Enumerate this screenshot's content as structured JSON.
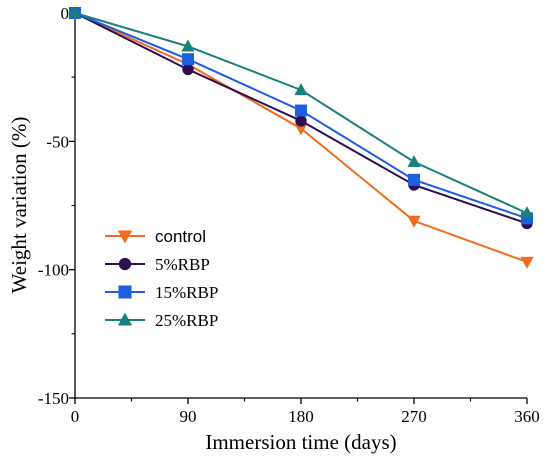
{
  "chart_data": {
    "type": "line",
    "title": "",
    "xlabel": "Immersion time (days)",
    "ylabel": "Weight variation (%)",
    "x": [
      0,
      90,
      180,
      270,
      360
    ],
    "xticks": [
      "0",
      "90",
      "180",
      "270",
      "360"
    ],
    "yticks": [
      "0",
      "-50",
      "-100",
      "-150"
    ],
    "xlim": [
      0,
      360
    ],
    "ylim": [
      -150,
      0
    ],
    "grid": false,
    "legend_position": "center-left",
    "series": [
      {
        "name": "control",
        "values": [
          0,
          -20,
          -45,
          -81,
          -97
        ],
        "color": "#f26b1d",
        "marker": "triangle-down"
      },
      {
        "name": "5%RBP",
        "values": [
          0,
          -22,
          -42,
          -67,
          -82
        ],
        "color": "#2e1050",
        "marker": "circle"
      },
      {
        "name": "15%RBP",
        "values": [
          0,
          -18,
          -38,
          -65,
          -80
        ],
        "color": "#1e5ee0",
        "marker": "square"
      },
      {
        "name": "25%RBP",
        "values": [
          0,
          -13,
          -30,
          -58,
          -78
        ],
        "color": "#19807a",
        "marker": "triangle-up"
      }
    ]
  }
}
